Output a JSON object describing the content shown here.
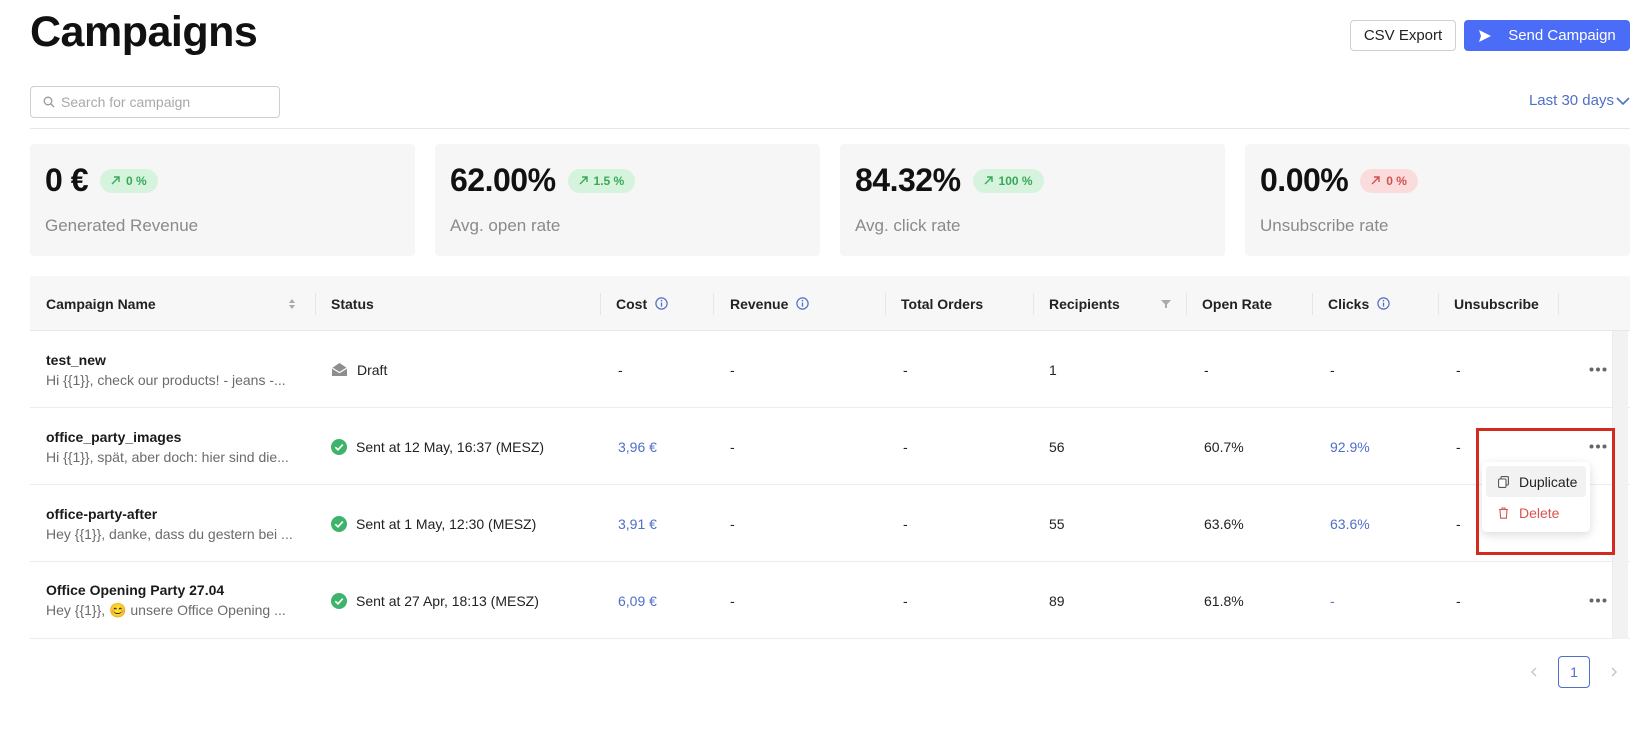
{
  "header": {
    "title": "Campaigns",
    "csv_export_label": "CSV Export",
    "send_campaign_label": "Send Campaign"
  },
  "search": {
    "placeholder": "Search for campaign",
    "value": ""
  },
  "date_range": {
    "label": "Last 30 days"
  },
  "stats": [
    {
      "value": "0 €",
      "change": "0 %",
      "trend": "up",
      "tone": "green",
      "label": "Generated Revenue"
    },
    {
      "value": "62.00%",
      "change": "1.5 %",
      "trend": "up",
      "tone": "green",
      "label": "Avg. open rate"
    },
    {
      "value": "84.32%",
      "change": "100 %",
      "trend": "up",
      "tone": "green",
      "label": "Avg. click rate"
    },
    {
      "value": "0.00%",
      "change": "0 %",
      "trend": "up",
      "tone": "red",
      "label": "Unsubscribe rate"
    }
  ],
  "table": {
    "columns": [
      {
        "label": "Campaign Name",
        "icon": "sort-icon"
      },
      {
        "label": "Status",
        "icon": ""
      },
      {
        "label": "Cost",
        "icon": "info-icon"
      },
      {
        "label": "Revenue",
        "icon": "info-icon"
      },
      {
        "label": "Total Orders",
        "icon": ""
      },
      {
        "label": "Recipients",
        "icon": "filter-icon"
      },
      {
        "label": "Open Rate",
        "icon": ""
      },
      {
        "label": "Clicks",
        "icon": "info-icon"
      },
      {
        "label": "Unsubscribe",
        "icon": ""
      }
    ],
    "rows": [
      {
        "name": "test_new",
        "preview": "Hi {{1}}, check our products! - jeans -...",
        "status_icon": "envelope-open-icon",
        "status": "Draft",
        "cost": "-",
        "revenue": "-",
        "orders": "-",
        "recipients": "1",
        "open_rate": "-",
        "clicks": "-",
        "unsubscribe": "-"
      },
      {
        "name": "office_party_images",
        "preview": "Hi {{1}}, spät, aber doch: hier sind die...",
        "status_icon": "check-circle-icon",
        "status": "Sent at 12 May, 16:37 (MESZ)",
        "cost": "3,96 €",
        "revenue": "-",
        "orders": "-",
        "recipients": "56",
        "open_rate": "60.7%",
        "clicks": "92.9%",
        "unsubscribe": "-"
      },
      {
        "name": "office-party-after",
        "preview": "Hey {{1}}, danke, dass du gestern bei ...",
        "status_icon": "check-circle-icon",
        "status": "Sent at 1 May, 12:30 (MESZ)",
        "cost": "3,91 €",
        "revenue": "-",
        "orders": "-",
        "recipients": "55",
        "open_rate": "63.6%",
        "clicks": "63.6%",
        "unsubscribe": "-"
      },
      {
        "name": "Office Opening Party 27.04",
        "preview": "Hey {{1}}, 😊 unsere Office Opening ...",
        "status_icon": "check-circle-icon",
        "status": "Sent at 27 Apr, 18:13 (MESZ)",
        "cost": "6,09 €",
        "revenue": "-",
        "orders": "-",
        "recipients": "89",
        "open_rate": "61.8%",
        "clicks": "-",
        "unsubscribe": "-"
      }
    ]
  },
  "row_menu": {
    "items": [
      {
        "label": "Duplicate",
        "icon": "copy-icon"
      },
      {
        "label": "Delete",
        "icon": "trash-icon"
      }
    ]
  },
  "pagination": {
    "current_page": "1"
  },
  "colors": {
    "accent": "#4a6cf7",
    "link": "#4f6fc8",
    "success": "#3db36b",
    "danger": "#d9534f",
    "highlight": "#d42a20"
  }
}
